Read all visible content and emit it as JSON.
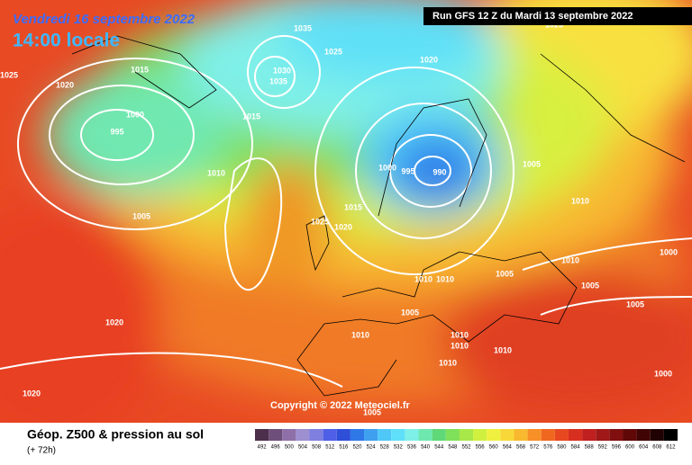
{
  "header": {
    "date": "Vendredi 16 septembre 2022",
    "time": "14:00 locale",
    "run": "Run GFS 12 Z du Mardi 13 septembre 2022"
  },
  "copyright": "Copyright © 2022 Meteociel.fr",
  "footer": {
    "title": "Géop. Z500 & pression au sol",
    "lead": "(+ 72h)"
  },
  "scale": {
    "values": [
      492,
      496,
      500,
      504,
      508,
      512,
      516,
      520,
      524,
      528,
      532,
      536,
      540,
      544,
      548,
      552,
      556,
      560,
      564,
      568,
      572,
      576,
      580,
      584,
      588,
      592,
      596,
      600,
      604,
      608,
      612
    ],
    "colors": [
      "#4b2f4b",
      "#6e4f7a",
      "#8e6fa8",
      "#9d8fd0",
      "#7f7fe0",
      "#4f5fe8",
      "#2f4fd8",
      "#2f78e8",
      "#3fa0f0",
      "#4fc8f8",
      "#5fe0f8",
      "#7ff0e8",
      "#6fe8b0",
      "#5fd878",
      "#7fe05a",
      "#a8e848",
      "#d0f040",
      "#f0f040",
      "#f8d838",
      "#f8b830",
      "#f89028",
      "#f06820",
      "#e84820",
      "#d83020",
      "#c02020",
      "#a01818",
      "#801010",
      "#600808",
      "#400404",
      "#200202",
      "#000000"
    ]
  },
  "isobars": [
    "1025",
    "1020",
    "1015",
    "1000",
    "995",
    "1010",
    "1005",
    "1015",
    "1030",
    "1035",
    "1035",
    "1025",
    "1020",
    "1000",
    "995",
    "990",
    "1005",
    "1010",
    "1015",
    "1025",
    "1020",
    "1010",
    "1000",
    "1005",
    "1010",
    "1010",
    "1005",
    "1005",
    "1005",
    "1010",
    "1010",
    "1010",
    "1010",
    "1010",
    "1020",
    "1020",
    "1000",
    "1005",
    "1025"
  ]
}
